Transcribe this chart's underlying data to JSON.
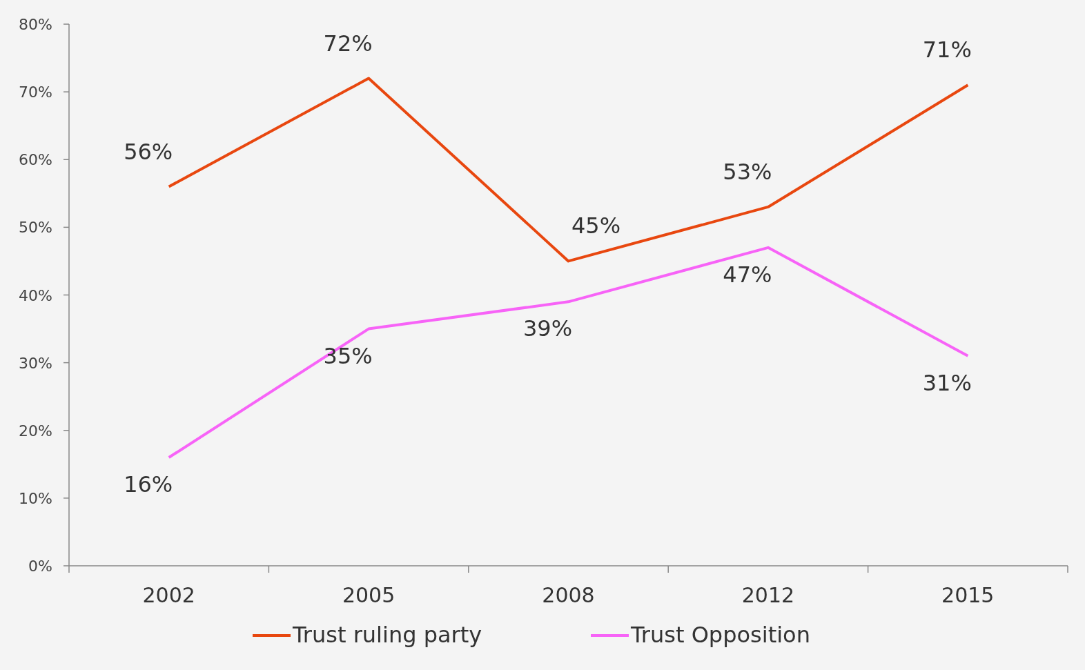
{
  "chart_data": {
    "type": "line",
    "categories": [
      "2002",
      "2005",
      "2008",
      "2012",
      "2015"
    ],
    "series": [
      {
        "name": "Trust ruling party",
        "color": "#e8470f",
        "values": [
          56,
          72,
          45,
          53,
          71
        ],
        "value_labels": [
          "56%",
          "72%",
          "45%",
          "53%",
          "71%"
        ]
      },
      {
        "name": "Trust Opposition",
        "color": "#f763f7",
        "values": [
          16,
          35,
          39,
          47,
          31
        ],
        "value_labels": [
          "16%",
          "35%",
          "39%",
          "47%",
          "31%"
        ]
      }
    ],
    "ylim": [
      0,
      80
    ],
    "yticks": [
      {
        "value": 0,
        "label": "0%"
      },
      {
        "value": 10,
        "label": "10%"
      },
      {
        "value": 20,
        "label": "20%"
      },
      {
        "value": 30,
        "label": "30%"
      },
      {
        "value": 40,
        "label": "40%"
      },
      {
        "value": 50,
        "label": "50%"
      },
      {
        "value": 60,
        "label": "60%"
      },
      {
        "value": 70,
        "label": "70%"
      },
      {
        "value": 80,
        "label": "80%"
      }
    ],
    "grid": false,
    "legend": "bottom",
    "marker": "none",
    "line_style": "solid"
  }
}
